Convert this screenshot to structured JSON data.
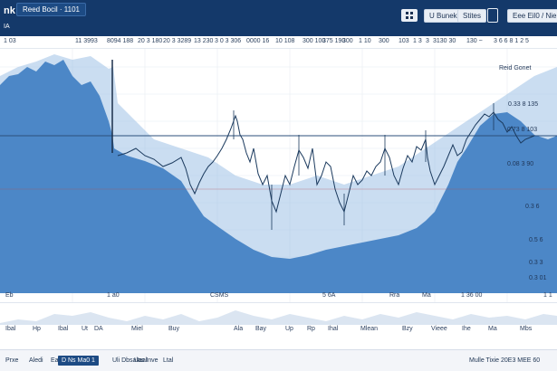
{
  "header": {
    "brand": "nk",
    "title_chip": "Reed Bocil · 1101",
    "subtitle": "IA",
    "left_caption": "Ux",
    "btn_1": "U Bunek",
    "btn_2": "Stites",
    "btn_3": "Eee Eil0 / Nie",
    "icon_names": [
      "grid-icon",
      "pause-icon",
      "phone-icon",
      "close-icon"
    ]
  },
  "ticker": {
    "cells": [
      "1 03",
      "11 3993",
      "8094 188",
      "20 3 180",
      "20 3 3289",
      "13 230",
      "3 0 3 306",
      "0000 16",
      "10 108",
      "300 100",
      "375 190",
      "300",
      "1 10",
      "300",
      "103",
      "1 3",
      "3",
      "3130 30",
      "130 ~",
      "3 6 6 8 1 2 5"
    ]
  },
  "chart": {
    "labels": {
      "top_right": "Reid Gonet",
      "r1": "0.33 8 135",
      "r2": "0.73 8 103",
      "r3": "0.08 3 90",
      "r4": "0.3 6",
      "r5": "0.5 6",
      "r6": "0.3 3",
      "r7": "0.3 01"
    },
    "x_labels": [
      "Eb",
      "1 a0",
      "CSMS",
      "5 6A",
      "Rra",
      "Ma",
      "1 36 00",
      "1 1"
    ]
  },
  "lower": {
    "months": [
      "Ibal",
      "Hp",
      "Ibal",
      "Ut",
      "DA",
      "Miel",
      "Buy",
      "Ala",
      "Bay",
      "Up",
      "Rp",
      "Ihal",
      "Mlean",
      "Bzy",
      "Vieee",
      "Ihe",
      "Ma",
      "Mbs"
    ]
  },
  "footer": {
    "tabs": [
      "Prxe",
      "Aledi",
      "Eau",
      "Uli Dbsalas Inve",
      "Uaal",
      "Ltal"
    ],
    "active_tab": "D Ns Ma0 1",
    "right_text": "Mulle Tixie 20E3 MEE 60",
    "right_extra": "0 4 1"
  },
  "colors": {
    "header_bg": "#14396a",
    "area_fill": "#4c87c7",
    "area_light": "#86b0dd",
    "candle": "#1b3a5e",
    "hline": "#3b5d86"
  }
}
